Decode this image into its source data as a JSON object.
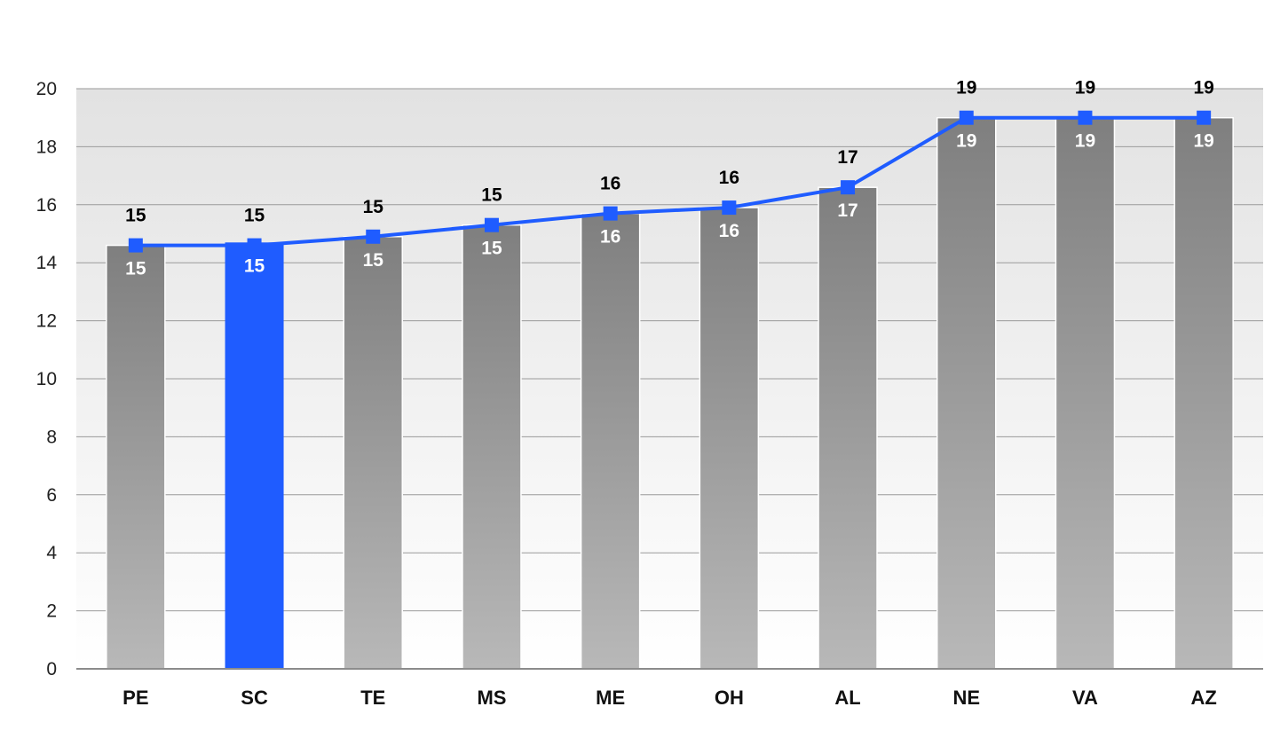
{
  "chart_data": {
    "type": "bar",
    "categories": [
      "PE",
      "SC",
      "TE",
      "MS",
      "ME",
      "OH",
      "AL",
      "NE",
      "VA",
      "AZ"
    ],
    "series": [
      {
        "type": "bar",
        "values": [
          14.6,
          14.7,
          14.9,
          15.3,
          15.7,
          15.9,
          16.6,
          19.0,
          19.0,
          19.0
        ],
        "labels": [
          "15",
          "15",
          "15",
          "15",
          "16",
          "16",
          "17",
          "19",
          "19",
          "19"
        ],
        "highlight_index": 1
      },
      {
        "type": "line",
        "values": [
          14.6,
          14.6,
          14.9,
          15.3,
          15.7,
          15.9,
          16.6,
          19.0,
          19.0,
          19.0
        ],
        "labels": [
          "15",
          "15",
          "15",
          "15",
          "16",
          "16",
          "17",
          "19",
          "19",
          "19"
        ]
      }
    ],
    "y_ticks": [
      "0",
      "2",
      "4",
      "6",
      "8",
      "10",
      "12",
      "14",
      "16",
      "18",
      "20"
    ],
    "ylim": [
      0,
      20
    ],
    "grid": true,
    "colors": {
      "bar_top": "#7f7f7f",
      "bar_bottom": "#b8b8b8",
      "highlight": "#1f5cff",
      "line": "#1f5cff",
      "plot_bg_top": "#e2e2e2",
      "plot_bg_bottom": "#ffffff",
      "grid": "#9a9a9a"
    }
  }
}
